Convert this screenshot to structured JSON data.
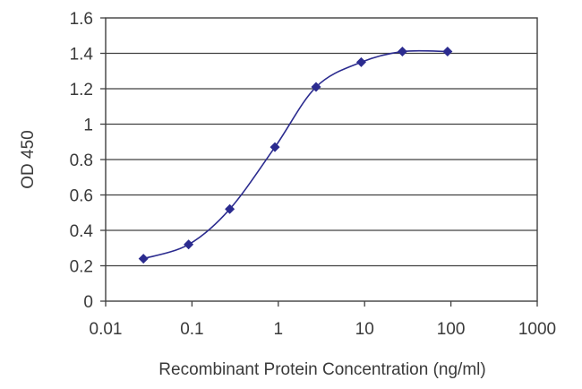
{
  "chart_data": {
    "type": "line",
    "title": "",
    "xlabel": "Recombinant Protein Concentration (ng/ml)",
    "ylabel": "OD 450",
    "x_scale": "log",
    "xlim": [
      0.01,
      1000
    ],
    "ylim": [
      0,
      1.6
    ],
    "x_ticks": [
      0.01,
      0.1,
      1,
      10,
      100,
      1000
    ],
    "x_tick_labels": [
      "0.01",
      "0.1",
      "1",
      "10",
      "100",
      "1000"
    ],
    "y_ticks": [
      0,
      0.2,
      0.4,
      0.6,
      0.8,
      1.0,
      1.2,
      1.4,
      1.6
    ],
    "y_tick_labels": [
      "0",
      "0.2",
      "0.4",
      "0.6",
      "0.8",
      "1",
      "1.2",
      "1.4",
      "1.6"
    ],
    "grid": "horizontal",
    "legend": "none",
    "series": [
      {
        "x": [
          0.0274,
          0.0914,
          0.274,
          0.914,
          2.74,
          9.14,
          27.4,
          91.4
        ],
        "values": [
          0.24,
          0.32,
          0.52,
          0.87,
          1.21,
          1.35,
          1.41,
          1.41
        ],
        "color": "#2b2b8f"
      }
    ],
    "colors": {
      "series": "#2b2b8f",
      "grid": "#404040",
      "axis": "#404040",
      "text": "#3a3a3a"
    }
  }
}
